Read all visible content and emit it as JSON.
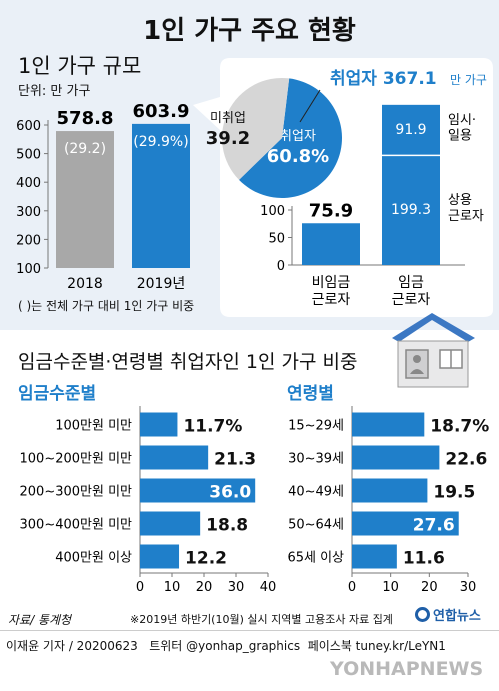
{
  "title": "1인 가구 주요 현황",
  "section1": {
    "title": "1인 가구 규모",
    "unit": "단위: 만 가구",
    "note": "(   )는 전체 가구 대비 1인 가구 비중"
  },
  "section2": {
    "title": "임금수준별·연령별 취업자인 1인 가구 비중",
    "left_label": "임금수준별",
    "right_label": "연령별"
  },
  "source": "자료/ 통계청",
  "footnote": "※2019년 하반기(10월) 실시 지역별 고용조사 자료 집계",
  "logo": "연합뉴스",
  "credit": "이재윤 기자 / 20200623   트위터 @yonhap_graphics  페이스북 tuney.kr/LeYN1",
  "watermark": "YONHAPNEWS",
  "colors": {
    "blue": "#1f7fca",
    "gray": "#a8a8a8",
    "panel": "#eaf0f7",
    "text": "#111111"
  },
  "chart_data": [
    {
      "id": "households",
      "type": "bar",
      "title": "1인 가구 규모",
      "categories": [
        "2018",
        "2019년"
      ],
      "values": [
        578.8,
        603.9
      ],
      "value_labels": [
        "578.8",
        "603.9"
      ],
      "share_labels": [
        "(29.2)",
        "(29.9%)"
      ],
      "yticks": [
        100,
        200,
        300,
        400,
        500,
        600
      ],
      "ylim": [
        100,
        600
      ],
      "grid": false,
      "bar_colors": [
        "#a8a8a8",
        "#1f7fca"
      ]
    },
    {
      "id": "employment-pie",
      "type": "pie",
      "title": "취업자 367.1만 가구",
      "title_parts": {
        "main": "취업자 367.1",
        "unit": "만 가구"
      },
      "slices": [
        {
          "name": "취업자",
          "value": 60.8,
          "label": "60.8%",
          "color": "#1f7fca"
        },
        {
          "name": "미취업",
          "value": 39.2,
          "label": "39.2",
          "color": "#d6d6d6"
        }
      ]
    },
    {
      "id": "worker-type",
      "type": "bar",
      "categories": [
        "비임금\n근로자",
        "임금\n근로자"
      ],
      "values": [
        75.9,
        291.2
      ],
      "value_labels": [
        "75.9",
        "291.2"
      ],
      "value_unit": "만 가구",
      "stack_on_second": [
        {
          "name": "임시·\n일용",
          "value": 91.9,
          "label": "91.9"
        },
        {
          "name": "상용\n근로자",
          "value": 199.3,
          "label": "199.3"
        }
      ],
      "yticks": [
        0,
        50,
        100
      ],
      "ylim": [
        0,
        300
      ],
      "grid": false
    },
    {
      "id": "wage",
      "type": "bar",
      "orientation": "horizontal",
      "title": "임금수준별",
      "categories": [
        "100만원 미만",
        "100~200만원 미만",
        "200~300만원 미만",
        "300~400만원 미만",
        "400만원 이상"
      ],
      "values": [
        11.7,
        21.3,
        36.0,
        18.8,
        12.2
      ],
      "value_labels": [
        "11.7%",
        "21.3",
        "36.0",
        "18.8",
        "12.2"
      ],
      "xticks": [
        0,
        10,
        20,
        30,
        40
      ],
      "xlim": [
        0,
        40
      ],
      "grid": false
    },
    {
      "id": "age",
      "type": "bar",
      "orientation": "horizontal",
      "title": "연령별",
      "categories": [
        "15~29세",
        "30~39세",
        "40~49세",
        "50~64세",
        "65세 이상"
      ],
      "values": [
        18.7,
        22.6,
        19.5,
        27.6,
        11.6
      ],
      "value_labels": [
        "18.7%",
        "22.6",
        "19.5",
        "27.6",
        "11.6"
      ],
      "xticks": [
        0,
        10,
        20,
        30
      ],
      "xlim": [
        0,
        30
      ],
      "grid": false
    }
  ]
}
